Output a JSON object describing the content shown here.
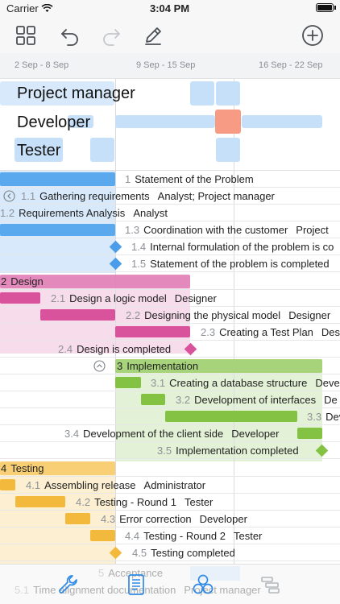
{
  "status": {
    "carrier": "Carrier",
    "time": "3:04 PM"
  },
  "toolbar": {
    "grid_icon": "grid-icon",
    "undo_icon": "undo-icon",
    "redo_icon": "redo-icon",
    "edit_icon": "pencil-icon",
    "add_icon": "plus-circle-icon"
  },
  "timeline": {
    "weeks": [
      "2 Sep - 8 Sep",
      "9 Sep - 15 Sep",
      "16 Sep - 22 Sep"
    ]
  },
  "resources": {
    "project_manager": "Project manager",
    "developer": "Developer",
    "tester": "Tester"
  },
  "colors": {
    "accent": "#2f8ae5",
    "blue_bar": "#5aa9ee",
    "blue_fill": "#d7e9fb",
    "pink_bar": "#d8539c",
    "pink_fill": "#f7dcec",
    "green_bar": "#84c244",
    "green_fill": "#e3f1d6",
    "orange_bar": "#f3b93c",
    "orange_fill": "#fdf0d2",
    "overload": "#f79b85"
  },
  "tasks": {
    "t1": {
      "num": "1",
      "name": "Statement of the Problem"
    },
    "t11": {
      "num": "1.1",
      "name": "Gathering requirements",
      "res": "Analyst; Project manager"
    },
    "t12": {
      "num": "1.2",
      "name": "Requirements Analysis",
      "res": "Analyst"
    },
    "t13": {
      "num": "1.3",
      "name": "Coordination with the customer",
      "res": "Project"
    },
    "t14": {
      "num": "1.4",
      "name": "Internal formulation of the problem is co"
    },
    "t15": {
      "num": "1.5",
      "name": "Statement of the problem is completed"
    },
    "t2": {
      "num": "2",
      "name": "Design"
    },
    "t21": {
      "num": "2.1",
      "name": "Design a logic model",
      "res": "Designer"
    },
    "t22": {
      "num": "2.2",
      "name": "Designing the physical model",
      "res": "Designer"
    },
    "t23": {
      "num": "2.3",
      "name": "Creating a Test Plan",
      "res": "Des"
    },
    "t24": {
      "num": "2.4",
      "name": "Design is completed"
    },
    "t3": {
      "num": "3",
      "name": "Implementation"
    },
    "t31": {
      "num": "3.1",
      "name": "Creating a database structure",
      "res": "Deve"
    },
    "t32": {
      "num": "3.2",
      "name": "Development of interfaces",
      "res": "De"
    },
    "t33": {
      "num": "3.3",
      "name": "Dev"
    },
    "t34": {
      "num": "3.4",
      "name": "Development of the client side",
      "res": "Developer"
    },
    "t35": {
      "num": "3.5",
      "name": "Implementation completed"
    },
    "t4": {
      "num": "4",
      "name": "Testing"
    },
    "t41": {
      "num": "4.1",
      "name": "Assembling release",
      "res": "Administrator"
    },
    "t42": {
      "num": "4.2",
      "name": "Testing - Round 1",
      "res": "Tester"
    },
    "t43": {
      "num": "4.3",
      "name": "Error correction",
      "res": "Developer"
    },
    "t44": {
      "num": "4.4",
      "name": "Testing - Round 2",
      "res": "Tester"
    },
    "t45": {
      "num": "4.5",
      "name": "Testing completed"
    },
    "t5": {
      "num": "5",
      "name": "Acceptance"
    },
    "t51": {
      "num": "5.1",
      "name": "Time alignment documentation",
      "res": "Project manager"
    }
  },
  "tabs": {
    "settings_icon": "wrench-icon",
    "document_icon": "document-icon",
    "resources_icon": "circles-icon",
    "gantt_icon": "gantt-icon"
  }
}
